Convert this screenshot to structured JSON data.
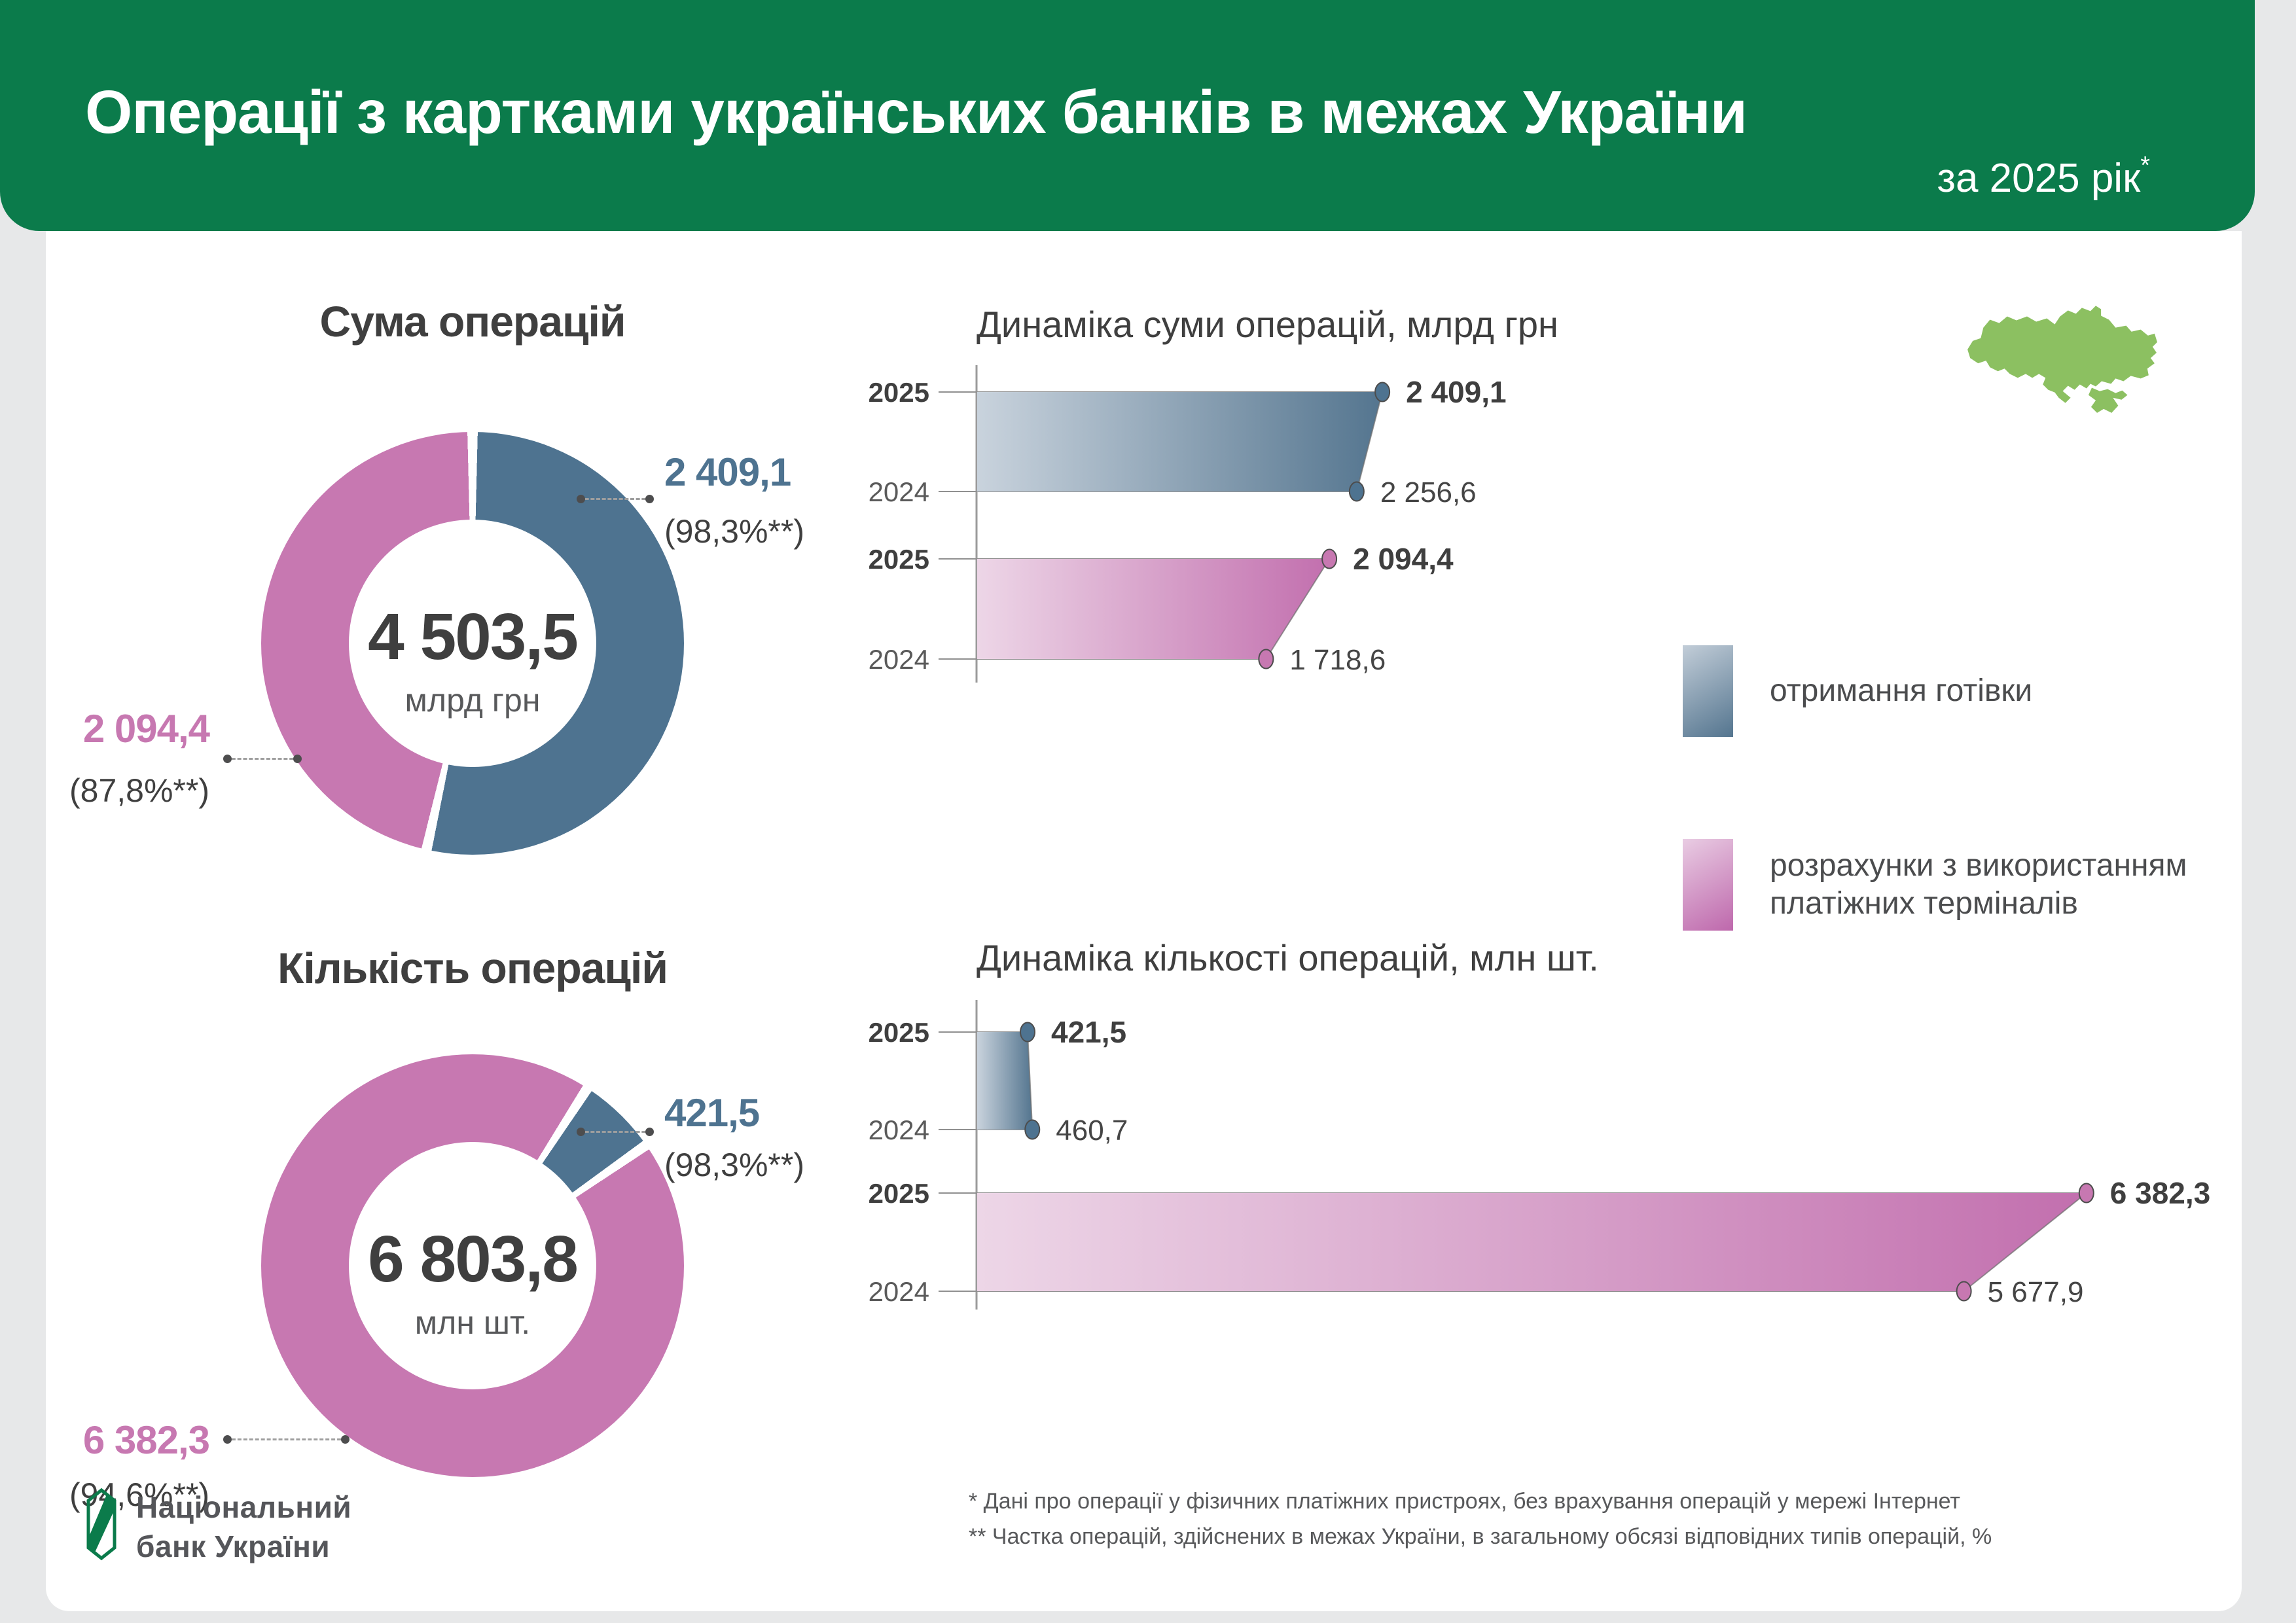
{
  "header": {
    "title": "Операції з картками українських банків в межах України",
    "period": "за 2025 рік",
    "period_mark": "*"
  },
  "colors": {
    "brand_green": "#0B7B4B",
    "map_green": "#8CC061",
    "cash_blue": "#4E7390",
    "pos_pink": "#C778B1",
    "text_dark": "#3F3F3F",
    "text_gray": "#58595B"
  },
  "legend": {
    "items": [
      {
        "key": "cash",
        "label": "отримання готівки"
      },
      {
        "key": "pos",
        "label": "розрахунки з використанням платіжних терміналів"
      }
    ]
  },
  "footnotes": [
    "* Дані про операції у фізичних платіжних пристроях, без врахування операцій у мережі Інтернет",
    "** Частка операцій, здійснених в межах України, в загальному обсязі відповідних типів операцій, %"
  ],
  "logo": {
    "line1": "Національний",
    "line2": "банк України"
  },
  "chart_data": [
    {
      "type": "pie",
      "variant": "donut",
      "title": "Сума операцій",
      "center_value": "4 503,5",
      "center_unit": "млрд грн",
      "rotation_deg": 0,
      "slices": [
        {
          "series": "cash",
          "name": "отримання готівки",
          "value": 2409.1,
          "label": "2 409,1",
          "share": "(98,3%**)"
        },
        {
          "series": "pos",
          "name": "розрахунки з використанням платіжних терміналів",
          "value": 2094.4,
          "label": "2 094,4",
          "share": "(87,8%**)"
        }
      ]
    },
    {
      "type": "pie",
      "variant": "donut",
      "title": "Кількість операцій",
      "center_value": "6 803,8",
      "center_unit": "млн шт.",
      "rotation_deg": 32.9,
      "slices": [
        {
          "series": "cash",
          "name": "отримання готівки",
          "value": 421.5,
          "label": "421,5",
          "share": "(98,3%**)"
        },
        {
          "series": "pos",
          "name": "розрахунки з використанням платіжних терміналів",
          "value": 6382.3,
          "label": "6 382,3",
          "share": "(94,6%**)"
        }
      ]
    },
    {
      "type": "area",
      "variant": "horizontal-funnel",
      "title": "Динаміка суми операцій, млрд грн",
      "categories": [
        "2025",
        "2024"
      ],
      "series": [
        {
          "key": "cash",
          "name": "отримання готівки",
          "values": [
            2409.1,
            2256.6
          ],
          "labels": [
            "2 409,1",
            "2 256,6"
          ]
        },
        {
          "key": "pos",
          "name": "розрахунки з використанням платіжних терміналів",
          "values": [
            2094.4,
            1718.6
          ],
          "labels": [
            "2 094,4",
            "1 718,6"
          ]
        }
      ]
    },
    {
      "type": "area",
      "variant": "horizontal-funnel",
      "title": "Динаміка кількості операцій, млн шт.",
      "categories": [
        "2025",
        "2024"
      ],
      "series": [
        {
          "key": "cash",
          "name": "отримання готівки",
          "values": [
            421.5,
            460.7
          ],
          "labels": [
            "421,5",
            "460,7"
          ]
        },
        {
          "key": "pos",
          "name": "розрахунки з використанням платіжних терміналів",
          "values": [
            6382.3,
            5677.9
          ],
          "labels": [
            "6 382,3",
            "5 677,9"
          ]
        }
      ]
    }
  ]
}
